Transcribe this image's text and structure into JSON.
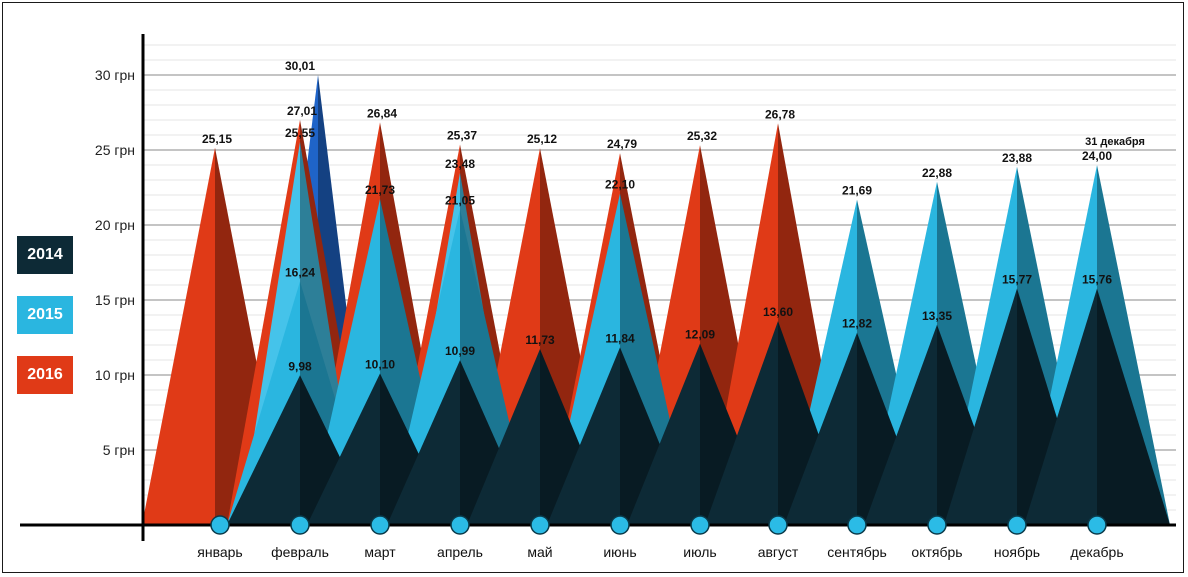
{
  "chart_data": {
    "type": "area",
    "categories": [
      "январь",
      "февраль",
      "март",
      "апрель",
      "май",
      "июнь",
      "июль",
      "август",
      "сентябрь",
      "октябрь",
      "ноябрь",
      "декабрь"
    ],
    "y_ticks": [
      "5 грн",
      "10 грн",
      "15 грн",
      "20 грн",
      "25 грн",
      "30 грн"
    ],
    "ylim": [
      0,
      30
    ],
    "series": [
      {
        "name": "2014",
        "color": "#0d2a36",
        "values": [
          null,
          9.98,
          10.1,
          10.99,
          11.73,
          11.84,
          12.09,
          13.6,
          12.82,
          13.35,
          15.77,
          15.76
        ],
        "labels": [
          null,
          "9,98",
          "10,10",
          "10,99",
          "11,73",
          "11,84",
          "12,09",
          "13,60",
          "12,82",
          "13,35",
          "15,77",
          "15,76"
        ]
      },
      {
        "name": "2015",
        "color": "#2ab6e0",
        "values": [
          null,
          16.24,
          21.73,
          21.05,
          null,
          22.1,
          null,
          null,
          21.69,
          22.88,
          23.88,
          24.0
        ],
        "labels": [
          null,
          "16,24",
          "21,73",
          "21,05",
          null,
          "22,10",
          null,
          null,
          "21,69",
          "22,88",
          "23,88",
          "24,00"
        ]
      },
      {
        "name": "2016",
        "color": "#e03a17",
        "values": [
          25.15,
          27.01,
          26.84,
          25.37,
          25.12,
          24.79,
          25.32,
          26.78,
          null,
          null,
          null,
          null
        ],
        "labels": [
          "25,15",
          "27,01",
          "26,84",
          "25,37",
          "25,12",
          "24,79",
          "25,32",
          "26,78",
          null,
          null,
          null,
          null
        ]
      }
    ],
    "extra_peaks": [
      {
        "month_index": 1,
        "value": 30.01,
        "label": "30,01",
        "color": "#1f64c8"
      },
      {
        "month_index": 1,
        "value": 25.55,
        "label": "25,55",
        "color": "#45c3ea"
      },
      {
        "month_index": 3,
        "value": 23.48,
        "label": "23,48",
        "color": "#45c3ea"
      }
    ],
    "annotation": "31 декабря",
    "legend_placement": "left",
    "grid": true
  }
}
